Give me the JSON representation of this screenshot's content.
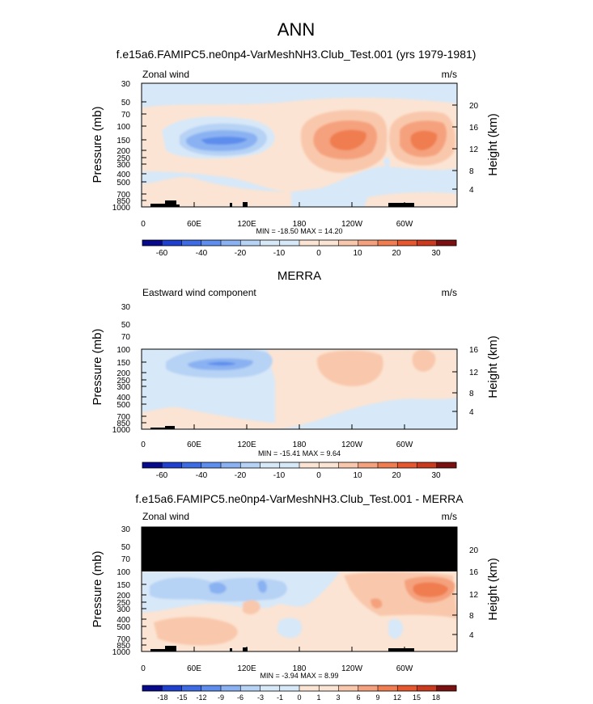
{
  "figure_title": "ANN",
  "colors": {
    "blue_dark": "#080a8c",
    "blue_1": "#1f3fce",
    "blue_2": "#3c6be3",
    "blue_3": "#5d8ded",
    "blue_4": "#8ab2f2",
    "blue_5": "#b6d2f5",
    "blue_6": "#d7e8f8",
    "red_1": "#fbe4d3",
    "red_2": "#f9c8ac",
    "red_3": "#f5a17d",
    "red_4": "#f07d50",
    "red_5": "#e6572d",
    "red_6": "#c93a1e",
    "red_7": "#a8261b",
    "red_dark": "#7a1010",
    "land": "#000000",
    "missing": "#000000"
  },
  "chart_data": [
    {
      "type": "heatmap",
      "title": "f.e15a6.FAMIPC5.ne0np4-VarMeshNH3.Club_Test.001 (yrs 1979-1981)",
      "left_label": "Zonal wind",
      "units": "m/s",
      "ylabel": "Pressure (mb)",
      "ylabel_right": "Height (km)",
      "y_ticks": [
        "30",
        "50",
        "70",
        "100",
        "150",
        "200",
        "250",
        "300",
        "400",
        "500",
        "700",
        "850",
        "1000"
      ],
      "y_ticks_right": [
        "20",
        "16",
        "12",
        "8",
        "4"
      ],
      "x_ticks": [
        "0",
        "60E",
        "120E",
        "180",
        "120W",
        "60W"
      ],
      "min_max": "MIN = -18.50  MAX = 14.20",
      "colorbar_labels": [
        "-60",
        "-40",
        "-20",
        "-10",
        "0",
        "10",
        "20",
        "30"
      ]
    },
    {
      "type": "heatmap",
      "title": "MERRA",
      "left_label": "Eastward wind component",
      "units": "m/s",
      "ylabel": "Pressure (mb)",
      "ylabel_right": "Height (km)",
      "y_ticks": [
        "30",
        "50",
        "70",
        "100",
        "150",
        "200",
        "250",
        "300",
        "400",
        "500",
        "700",
        "850",
        "1000"
      ],
      "y_ticks_right": [
        "16",
        "12",
        "8",
        "4"
      ],
      "x_ticks": [
        "0",
        "60E",
        "120E",
        "180",
        "120W",
        "60W"
      ],
      "min_max": "MIN = -15.41  MAX =  9.64",
      "colorbar_labels": [
        "-60",
        "-40",
        "-20",
        "-10",
        "0",
        "10",
        "20",
        "30"
      ]
    },
    {
      "type": "heatmap",
      "title": "f.e15a6.FAMIPC5.ne0np4-VarMeshNH3.Club_Test.001 - MERRA",
      "left_label": "Zonal wind",
      "units": "m/s",
      "ylabel": "Pressure (mb)",
      "ylabel_right": "Height (km)",
      "y_ticks": [
        "30",
        "50",
        "70",
        "100",
        "150",
        "200",
        "250",
        "300",
        "400",
        "500",
        "700",
        "850",
        "1000"
      ],
      "y_ticks_right": [
        "20",
        "16",
        "12",
        "8",
        "4"
      ],
      "x_ticks": [
        "0",
        "60E",
        "120E",
        "180",
        "120W",
        "60W"
      ],
      "min_max": "MIN = -3.94  MAX =  8.99",
      "colorbar_labels": [
        "-18",
        "-15",
        "-12",
        "-9",
        "-6",
        "-3",
        "-1",
        "0",
        "1",
        "3",
        "6",
        "9",
        "12",
        "15",
        "18"
      ]
    }
  ]
}
